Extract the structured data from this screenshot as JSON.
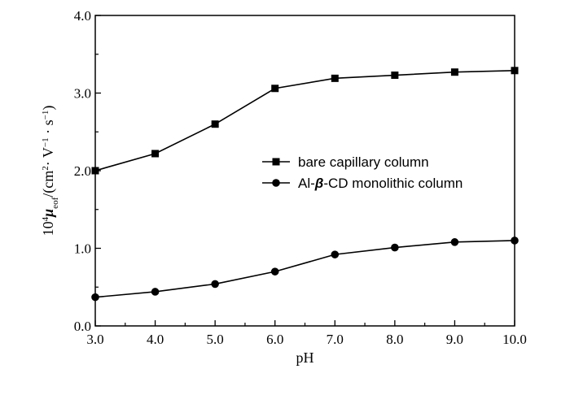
{
  "chart_data": {
    "type": "line",
    "xlabel": "pH",
    "ylabel_parts": {
      "prefix": "10",
      "sup_exp": "4",
      "mu": "μ",
      "mu_sub": "eof",
      "units_open": "/(cm",
      "units_sup2": "2",
      "units_mid": "· V",
      "units_sup_v": "−1",
      "units_mid2": " · s",
      "units_sup_s": "−1",
      "units_close": ")"
    },
    "xlim": [
      3.0,
      10.0
    ],
    "ylim": [
      0.0,
      4.0
    ],
    "xticks": [
      3.0,
      4.0,
      5.0,
      6.0,
      7.0,
      8.0,
      9.0,
      10.0
    ],
    "xtick_labels": [
      "3.0",
      "4.0",
      "5.0",
      "6.0",
      "7.0",
      "8.0",
      "9.0",
      "10.0"
    ],
    "yticks": [
      0.0,
      1.0,
      2.0,
      3.0,
      4.0
    ],
    "ytick_labels": [
      "0.0",
      "1.0",
      "2.0",
      "3.0",
      "4.0"
    ],
    "grid": false,
    "legend_position": "right-middle",
    "series": [
      {
        "name": "bare capillary column",
        "marker": "square",
        "color": "#000000",
        "x": [
          3.0,
          4.0,
          5.0,
          6.0,
          7.0,
          8.0,
          9.0,
          10.0
        ],
        "y": [
          2.0,
          2.22,
          2.6,
          3.06,
          3.19,
          3.23,
          3.27,
          3.29
        ]
      },
      {
        "name_parts": [
          "Al-",
          "β",
          "-CD monolithic column"
        ],
        "marker": "circle",
        "color": "#000000",
        "x": [
          3.0,
          4.0,
          5.0,
          6.0,
          7.0,
          8.0,
          9.0,
          10.0
        ],
        "y": [
          0.37,
          0.44,
          0.54,
          0.7,
          0.92,
          1.01,
          1.08,
          1.1
        ]
      }
    ]
  }
}
